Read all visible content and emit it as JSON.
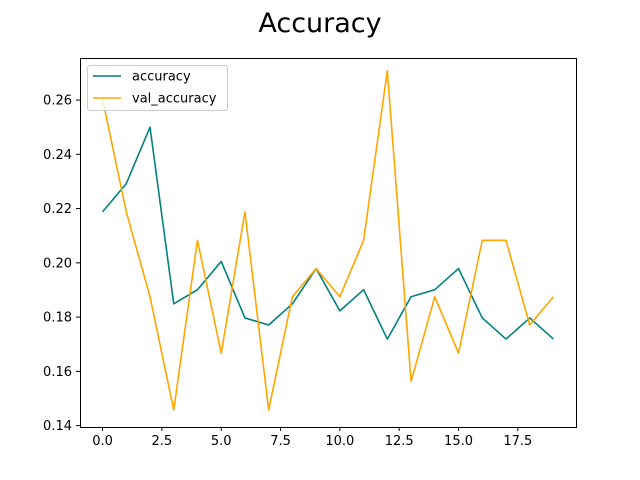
{
  "chart_data": {
    "type": "line",
    "title": "Accuracy",
    "xlabel": "",
    "ylabel": "",
    "xlim": [
      -0.95,
      19.95
    ],
    "ylim": [
      0.1395,
      0.2755
    ],
    "x_ticks": [
      0.0,
      2.5,
      5.0,
      7.5,
      10.0,
      12.5,
      15.0,
      17.5
    ],
    "x_tick_labels": [
      "0.0",
      "2.5",
      "5.0",
      "7.5",
      "10.0",
      "12.5",
      "15.0",
      "17.5"
    ],
    "y_ticks": [
      0.14,
      0.16,
      0.18,
      0.2,
      0.22,
      0.24,
      0.26
    ],
    "y_tick_labels": [
      "0.14",
      "0.16",
      "0.18",
      "0.20",
      "0.22",
      "0.24",
      "0.26"
    ],
    "grid": false,
    "legend_position": "top-left",
    "x": [
      0,
      1,
      2,
      3,
      4,
      5,
      6,
      7,
      8,
      9,
      10,
      11,
      12,
      13,
      14,
      15,
      16,
      17,
      18,
      19
    ],
    "series": [
      {
        "name": "accuracy",
        "color": "#008080",
        "values": [
          0.2188,
          0.2292,
          0.25,
          0.1849,
          0.1901,
          0.2005,
          0.1797,
          0.1771,
          0.1849,
          0.1979,
          0.1823,
          0.1901,
          0.1719,
          0.1875,
          0.1901,
          0.1979,
          0.1797,
          0.1719,
          0.1797,
          0.1719
        ]
      },
      {
        "name": "val_accuracy",
        "color": "#FFA500",
        "values": [
          0.2604,
          0.2188,
          0.1875,
          0.1458,
          0.2083,
          0.1667,
          0.2188,
          0.1458,
          0.1875,
          0.1979,
          0.1875,
          0.2083,
          0.2708,
          0.1563,
          0.1875,
          0.1667,
          0.2083,
          0.2083,
          0.1771,
          0.1875
        ]
      }
    ]
  }
}
